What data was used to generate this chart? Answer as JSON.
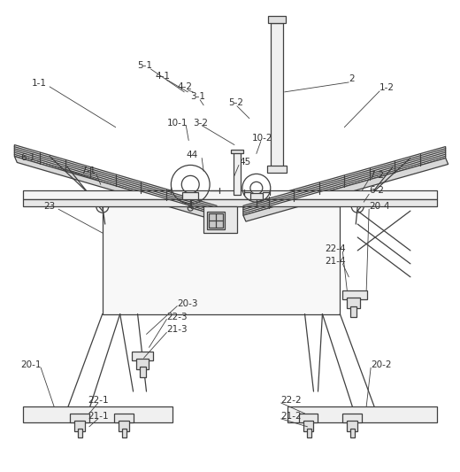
{
  "bg_color": "#ffffff",
  "line_color": "#404040",
  "label_color": "#303030",
  "font_size": 7.5,
  "figsize": [
    5.2,
    5.33
  ],
  "dpi": 100
}
